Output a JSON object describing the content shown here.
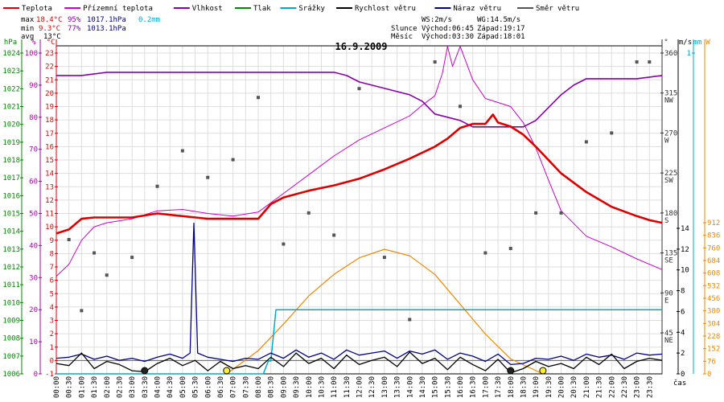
{
  "colors": {
    "temp": "#dd0000",
    "feels": "#cc00cc",
    "humidity": "#8800aa",
    "pressure": "#008800",
    "rain": "#00aacc",
    "wind": "#000000",
    "gust": "#000088",
    "dir": "#555555",
    "solar": "#ee8800",
    "frame": "#000000",
    "grid": "#dddddd",
    "frost": "#0000ff"
  },
  "legend": [
    {
      "id": "temp",
      "label": "Teplota"
    },
    {
      "id": "feels",
      "label": "Přízemní teplota"
    },
    {
      "id": "humidity",
      "label": "Vlhkost"
    },
    {
      "id": "pressure",
      "label": "Tlak"
    },
    {
      "id": "rain",
      "label": "Srážky"
    },
    {
      "id": "wind",
      "label": "Rychlost větru"
    },
    {
      "id": "gust",
      "label": "Náraz větru"
    },
    {
      "id": "dir",
      "label": "Směr větru"
    }
  ],
  "stats": {
    "max_label": "max",
    "max_t": "18.4°C",
    "max_h": "95%",
    "max_p": "1017.1hPa",
    "max_r": "0.2mm",
    "min_label": "min",
    "min_t": "9.3°C",
    "min_h": "77%",
    "min_p": "1013.1hPa",
    "avg_label": "avg",
    "avg_t": "13°C"
  },
  "info": {
    "ws": "WS:2m/s",
    "wg": "WG:14.5m/s",
    "sun_label": "Slunce",
    "sunrise": "Východ:06:45",
    "sunset": "Západ:19:17",
    "moon_label": "Měsíc",
    "moonrise": "Východ:03:30",
    "moonset": "Západ:18:01"
  },
  "title": "16.9.2009",
  "xlabel": "čas",
  "chart_data": {
    "type": "line",
    "title": "16.9.2009",
    "xlabel": "čas",
    "x_ticks": [
      "00:00",
      "00:30",
      "01:00",
      "01:30",
      "02:00",
      "02:30",
      "03:00",
      "03:30",
      "04:00",
      "04:30",
      "05:00",
      "05:30",
      "06:00",
      "06:30",
      "07:00",
      "07:30",
      "08:00",
      "08:30",
      "09:00",
      "09:30",
      "10:00",
      "10:30",
      "11:00",
      "11:30",
      "12:00",
      "12:30",
      "13:00",
      "13:30",
      "14:00",
      "14:30",
      "15:00",
      "15:30",
      "16:00",
      "16:30",
      "17:00",
      "17:30",
      "18:00",
      "18:30",
      "19:00",
      "19:30",
      "20:00",
      "20:30",
      "21:00",
      "21:30",
      "22:00",
      "22:30",
      "23:00",
      "23:30"
    ],
    "axes": {
      "pressure": {
        "unit": "hPa",
        "ticks": [
          1006,
          1007,
          1008,
          1009,
          1010,
          1011,
          1012,
          1013,
          1014,
          1015,
          1016,
          1017,
          1018,
          1019,
          1020,
          1021,
          1022,
          1023,
          1024
        ]
      },
      "humidity": {
        "unit": "%",
        "ticks": [
          0,
          10,
          20,
          30,
          40,
          50,
          60,
          70,
          80,
          90,
          100
        ]
      },
      "temperature": {
        "unit": "°C",
        "ticks": [
          -1,
          0,
          1,
          2,
          3,
          4,
          5,
          6,
          7,
          8,
          9,
          10,
          11,
          12,
          13,
          14,
          15,
          16,
          17,
          18,
          19,
          20,
          21,
          22,
          23
        ]
      },
      "direction": {
        "unit": "°",
        "ticks": [
          {
            "v": 45,
            "l": "NE"
          },
          {
            "v": 90,
            "l": "E"
          },
          {
            "v": 135,
            "l": "SE"
          },
          {
            "v": 180,
            "l": "S"
          },
          {
            "v": 225,
            "l": "SW"
          },
          {
            "v": 270,
            "l": "W"
          },
          {
            "v": 315,
            "l": "NW"
          },
          {
            "v": 360,
            "l": ""
          }
        ]
      },
      "wind": {
        "unit": "m/s",
        "ticks": [
          0,
          2,
          4,
          6,
          8,
          10,
          12,
          14
        ]
      },
      "rain": {
        "unit": "mm",
        "ticks": [
          1
        ]
      },
      "solar": {
        "unit": "W",
        "ticks": [
          0,
          76,
          152,
          228,
          304,
          380,
          456,
          532,
          608,
          684,
          760,
          836,
          912
        ]
      }
    },
    "series": [
      {
        "name": "Teplota",
        "axis": "temperature",
        "t": [
          0,
          0.5,
          1,
          1.5,
          2,
          3,
          4,
          5,
          6,
          7,
          8,
          8.5,
          9,
          10,
          10.5,
          11,
          12,
          13,
          14,
          15,
          15.5,
          16,
          16.5,
          17,
          17.3,
          17.5,
          18,
          18.5,
          19,
          19.5,
          20,
          21,
          22,
          23,
          23.5,
          24
        ],
        "v": [
          9.5,
          9.8,
          10.6,
          10.7,
          10.7,
          10.7,
          11.0,
          10.8,
          10.6,
          10.6,
          10.6,
          11.7,
          12.2,
          12.7,
          12.9,
          13.1,
          13.6,
          14.3,
          15.1,
          16.0,
          16.6,
          17.4,
          17.7,
          17.7,
          18.4,
          17.8,
          17.5,
          16.9,
          16.0,
          15.0,
          14.0,
          12.6,
          11.5,
          10.8,
          10.5,
          10.3
        ]
      },
      {
        "name": "Přízemní teplota",
        "axis": "temperature",
        "t": [
          0,
          0.5,
          1,
          1.5,
          2,
          3,
          4,
          5,
          6,
          7,
          8,
          9,
          10,
          11,
          12,
          13,
          14,
          14.5,
          15,
          15.3,
          15.5,
          15.7,
          16,
          16.5,
          17,
          17.5,
          18,
          18.5,
          19,
          19.5,
          20,
          21,
          22,
          23,
          24
        ],
        "v": [
          6.3,
          7.2,
          9.0,
          10.0,
          10.3,
          10.6,
          11.2,
          11.3,
          11.0,
          10.8,
          11.1,
          12.5,
          13.9,
          15.3,
          16.5,
          17.4,
          18.3,
          19.1,
          19.8,
          21.5,
          23.5,
          22.0,
          23.5,
          21.0,
          19.6,
          19.3,
          19.0,
          17.8,
          15.9,
          13.5,
          11.2,
          9.3,
          8.5,
          7.6,
          6.8
        ]
      },
      {
        "name": "Vlhkost",
        "axis": "humidity",
        "t": [
          0,
          1,
          2,
          3,
          4,
          5,
          6,
          7,
          8,
          9,
          10,
          11,
          11.5,
          12,
          13,
          14,
          14.5,
          15,
          15.5,
          16,
          16.5,
          17,
          17.5,
          18,
          18.5,
          19,
          19.5,
          20,
          20.5,
          21,
          22,
          23,
          24
        ],
        "v": [
          93,
          93,
          94,
          94,
          94,
          94,
          94,
          94,
          94,
          94,
          94,
          94,
          93,
          91,
          89,
          87,
          85,
          81,
          80,
          79,
          77,
          77,
          77,
          77,
          77,
          79,
          83,
          87,
          90,
          92,
          92,
          92,
          93
        ]
      },
      {
        "name": "Rychlost větru",
        "axis": "wind",
        "t": [
          0,
          0.5,
          1,
          1.5,
          2,
          2.5,
          3,
          3.5,
          4,
          4.5,
          5,
          5.5,
          6,
          6.5,
          7,
          7.5,
          8,
          8.5,
          9,
          9.5,
          10,
          10.5,
          11,
          11.5,
          12,
          12.5,
          13,
          13.5,
          14,
          14.5,
          15,
          15.5,
          16,
          16.5,
          17,
          17.5,
          18,
          18.5,
          19,
          19.5,
          20,
          20.5,
          21,
          21.5,
          22,
          22.5,
          23,
          23.5,
          24
        ],
        "v": [
          1.0,
          0.8,
          2.0,
          0.5,
          1.2,
          0.9,
          0.3,
          0.2,
          1.0,
          1.5,
          0.8,
          1.3,
          0.3,
          1.2,
          0.5,
          0.8,
          0.5,
          1.6,
          0.7,
          2.0,
          1.0,
          1.5,
          0.5,
          1.8,
          0.9,
          1.3,
          1.6,
          0.7,
          2.1,
          1.0,
          1.5,
          0.4,
          1.6,
          0.9,
          0.3,
          1.4,
          0.1,
          0.5,
          1.2,
          0.7,
          1.0,
          0.5,
          1.6,
          0.9,
          1.9,
          0.5,
          1.2,
          1.5,
          1.3
        ]
      },
      {
        "name": "Náraz větru",
        "axis": "wind",
        "t": [
          0,
          0.5,
          1,
          1.5,
          2,
          2.5,
          3,
          3.5,
          4,
          4.5,
          5,
          5.3,
          5.45,
          5.6,
          6,
          6.5,
          7,
          7.5,
          8,
          8.5,
          9,
          9.5,
          10,
          10.5,
          11,
          11.5,
          12,
          12.5,
          13,
          13.5,
          14,
          14.5,
          15,
          15.5,
          16,
          16.5,
          17,
          17.5,
          18,
          18.5,
          19,
          19.5,
          20,
          20.5,
          21,
          21.5,
          22,
          22.5,
          23,
          23.5,
          24
        ],
        "v": [
          1.5,
          1.6,
          1.9,
          1.4,
          1.7,
          1.3,
          1.5,
          1.2,
          1.6,
          1.9,
          1.5,
          2.0,
          14.5,
          2.0,
          1.6,
          1.4,
          1.2,
          1.5,
          1.4,
          2.0,
          1.5,
          2.3,
          1.6,
          2.0,
          1.4,
          2.3,
          1.8,
          2.0,
          2.2,
          1.5,
          2.2,
          1.9,
          2.3,
          1.4,
          2.0,
          1.7,
          1.2,
          1.9,
          0.9,
          1.0,
          1.5,
          1.4,
          1.7,
          1.3,
          1.9,
          1.6,
          1.8,
          1.4,
          2.0,
          1.8,
          1.9
        ]
      },
      {
        "name": "Srážky",
        "axis": "rain",
        "t": [
          0,
          8.2,
          8.4,
          8.5,
          8.7,
          9,
          12,
          15,
          18,
          21,
          24
        ],
        "v": [
          0,
          0,
          0.04,
          0.04,
          0.2,
          0.2,
          0.2,
          0.2,
          0.2,
          0.2,
          0.2
        ]
      },
      {
        "name": "Solární záření",
        "axis": "solar",
        "t": [
          6.75,
          8,
          9,
          10,
          11,
          12,
          13,
          14,
          15,
          16,
          17,
          18,
          19.28
        ],
        "v": [
          0,
          140,
          300,
          470,
          600,
          700,
          752,
          712,
          600,
          420,
          240,
          90,
          0
        ]
      },
      {
        "name": "Směr větru",
        "axis": "direction",
        "type": "scatter",
        "t": [
          0.5,
          1,
          1.5,
          2,
          3,
          4,
          5,
          6,
          7,
          8,
          9,
          10,
          11,
          12,
          13,
          14,
          15,
          16,
          17,
          18,
          19,
          20,
          21,
          22,
          23,
          23.5
        ],
        "v": [
          150,
          70,
          135,
          110,
          130,
          210,
          250,
          220,
          240,
          310,
          145,
          180,
          155,
          320,
          130,
          60,
          350,
          300,
          135,
          140,
          180,
          180,
          260,
          270,
          350,
          350
        ]
      }
    ]
  }
}
